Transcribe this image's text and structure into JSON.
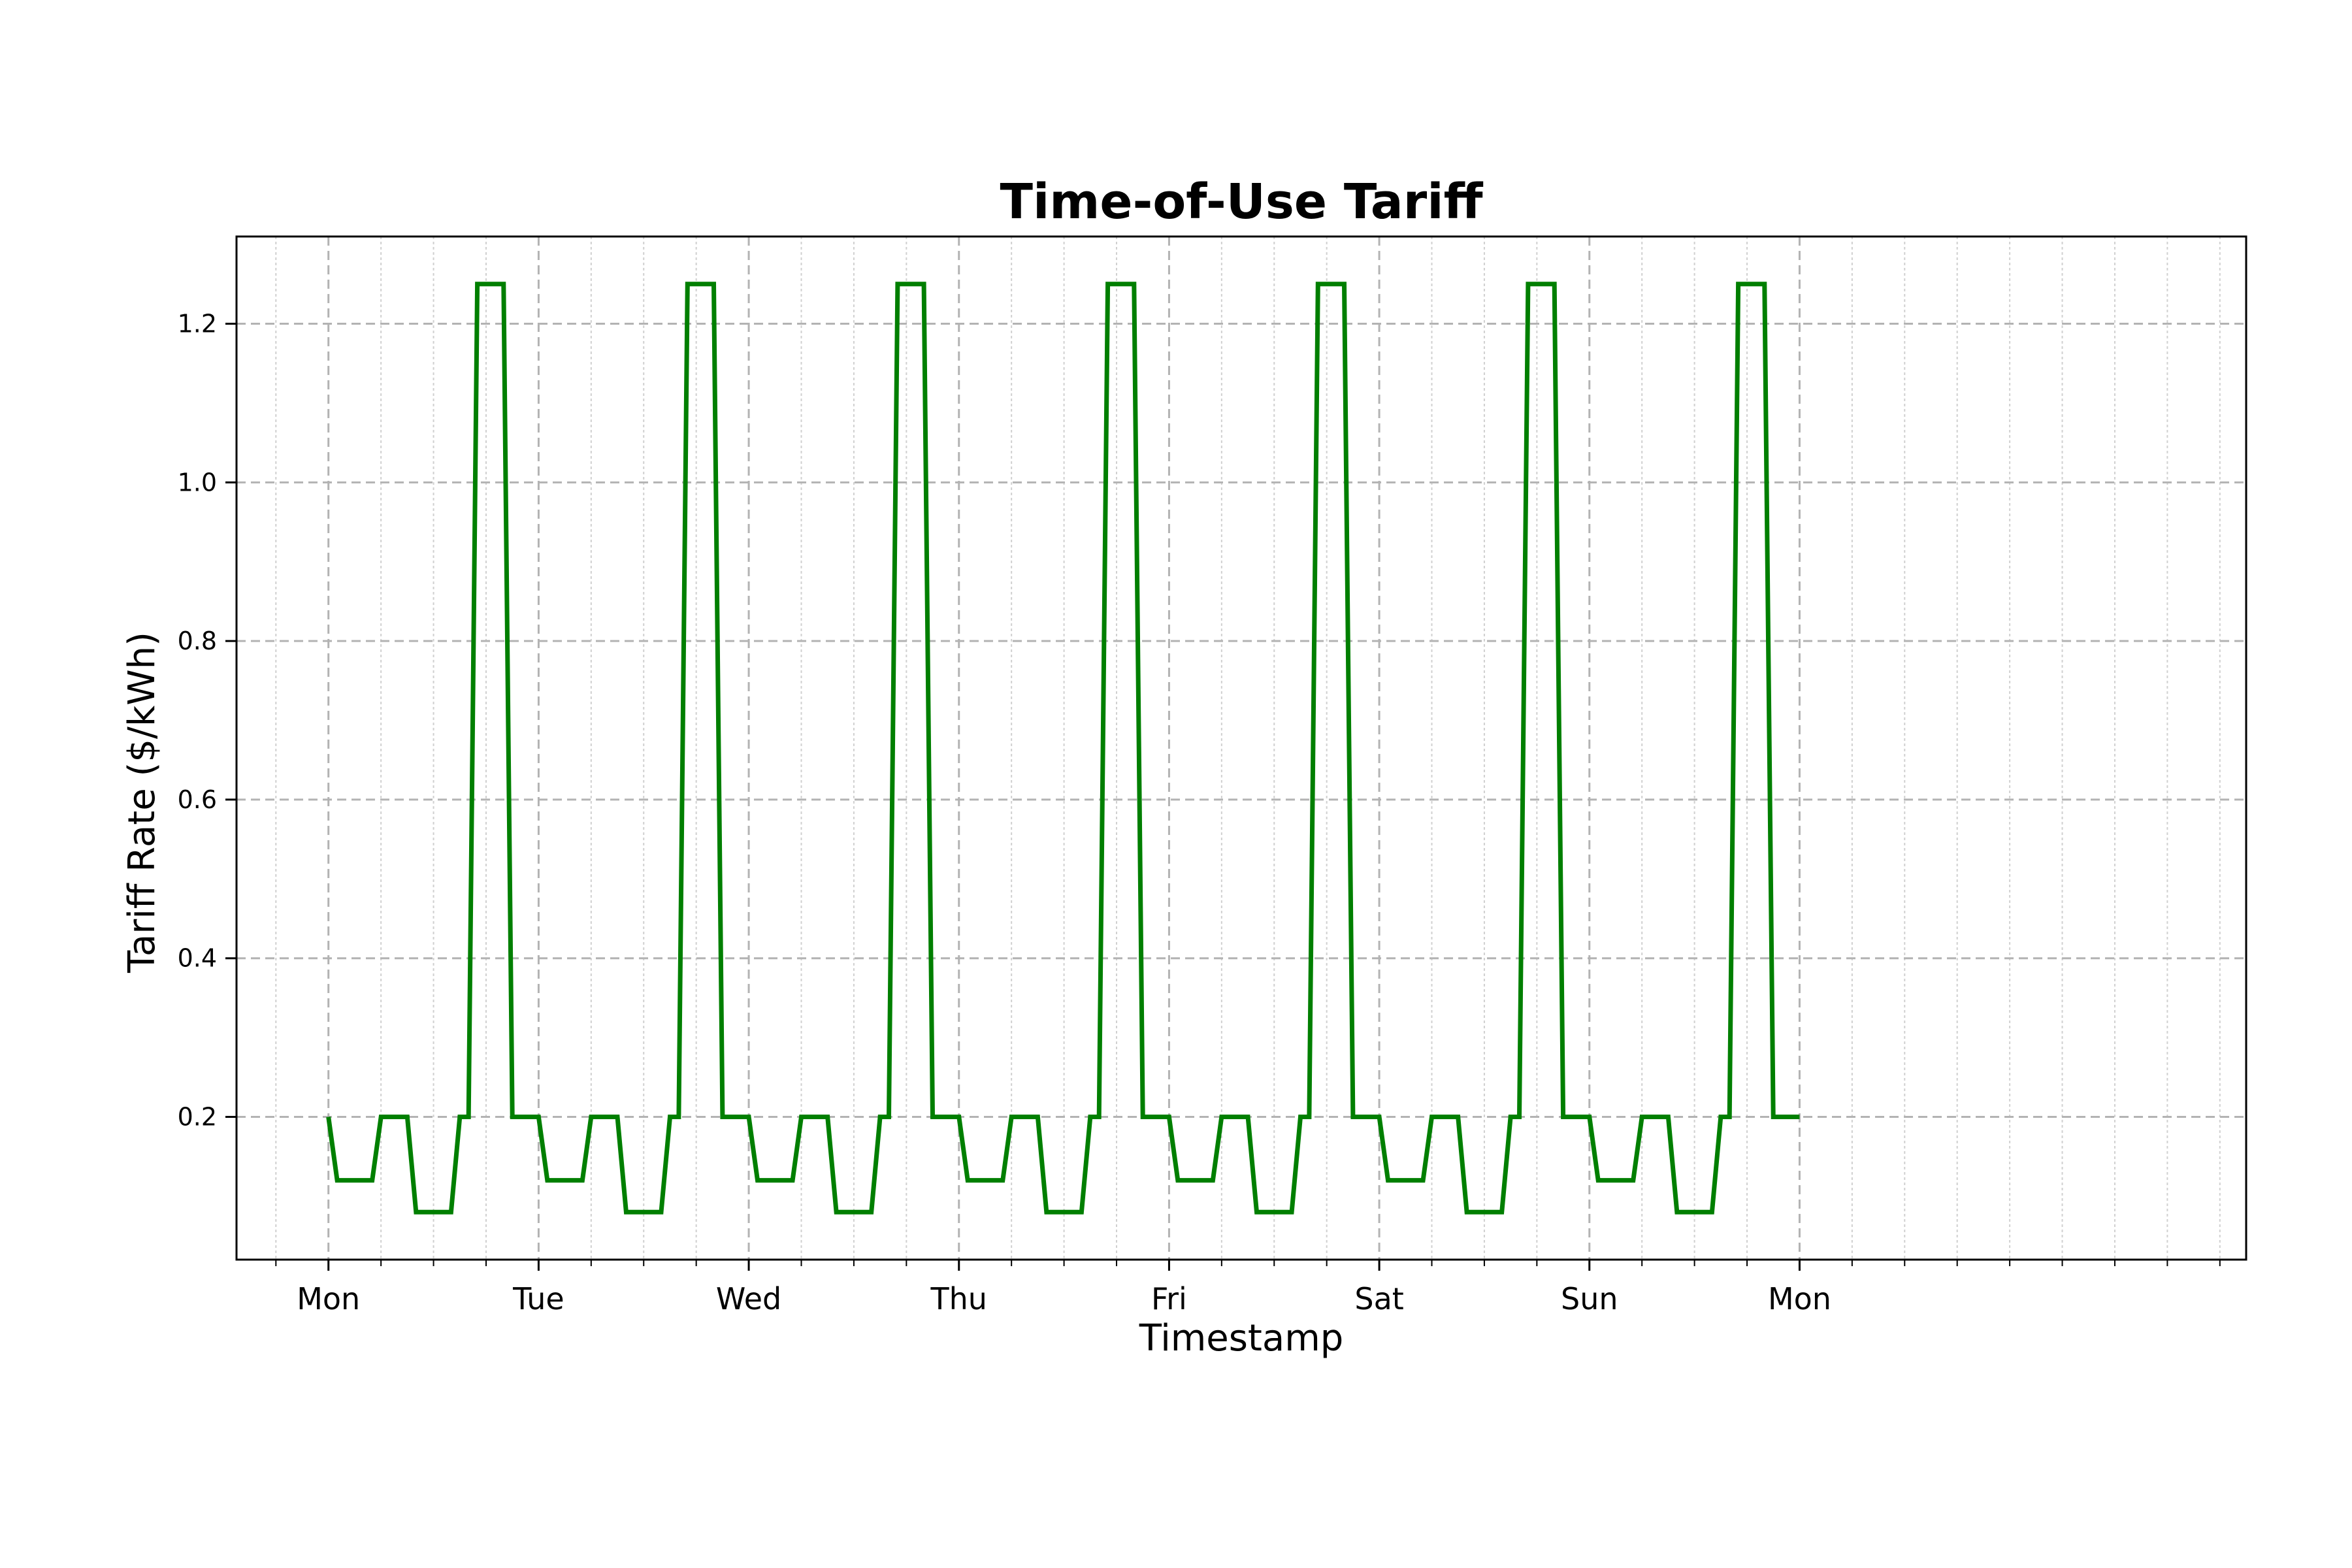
{
  "chart_data": {
    "type": "line",
    "step": true,
    "title": "Time-of-Use Tariff",
    "xlabel": "Timestamp",
    "ylabel": "Tariff Rate ($/kWh)",
    "x_unit": "hour",
    "xlim_hours": [
      -10.5,
      219
    ],
    "ylim": [
      0.02,
      1.31
    ],
    "xticks": [
      {
        "hour": 0,
        "label": "Mon"
      },
      {
        "hour": 24,
        "label": "Tue"
      },
      {
        "hour": 48,
        "label": "Wed"
      },
      {
        "hour": 72,
        "label": "Thu"
      },
      {
        "hour": 96,
        "label": "Fri"
      },
      {
        "hour": 120,
        "label": "Sat"
      },
      {
        "hour": 144,
        "label": "Sun"
      },
      {
        "hour": 168,
        "label": "Mon"
      }
    ],
    "minor_xticks_every_hours": 6,
    "yticks": [
      0.2,
      0.4,
      0.6,
      0.8,
      1.0,
      1.2
    ],
    "ytick_labels": [
      "0.2",
      "0.4",
      "0.6",
      "0.8",
      "1.0",
      "1.2"
    ],
    "grid": true,
    "series_color": "#007f00",
    "daily_schedule": [
      {
        "start_hour": 0,
        "rate": 0.2
      },
      {
        "start_hour": 1,
        "rate": 0.12
      },
      {
        "start_hour": 6,
        "rate": 0.2
      },
      {
        "start_hour": 10,
        "rate": 0.08
      },
      {
        "start_hour": 15,
        "rate": 0.2
      },
      {
        "start_hour": 17,
        "rate": 1.25
      },
      {
        "start_hour": 21,
        "rate": 0.2
      }
    ],
    "days": 7,
    "end_hour": 168
  }
}
